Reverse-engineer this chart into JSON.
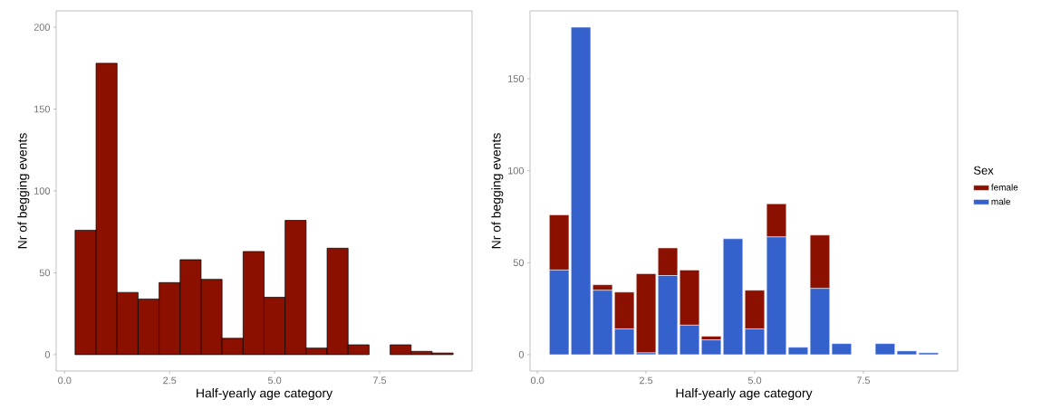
{
  "chart_data": [
    {
      "type": "histogram",
      "xlabel": "Half-yearly age category",
      "ylabel": "Nr of begging events",
      "bins": [
        0.25,
        0.75,
        1.25,
        1.75,
        2.25,
        2.75,
        3.25,
        3.75,
        4.25,
        4.75,
        5.25,
        5.75,
        6.25,
        6.75,
        7.25,
        7.75,
        8.25,
        8.75,
        9.25
      ],
      "values": [
        76,
        178,
        38,
        34,
        44,
        58,
        46,
        10,
        63,
        35,
        82,
        4,
        65,
        6,
        0,
        6,
        2,
        1
      ],
      "color": "#8b1000",
      "xlim": [
        -0.2,
        9.7
      ],
      "ylim": [
        -10,
        210
      ],
      "xticks": [
        {
          "value": 0,
          "label": "0.0"
        },
        {
          "value": 2.5,
          "label": "2.5"
        },
        {
          "value": 5,
          "label": "5.0"
        },
        {
          "value": 7.5,
          "label": "7.5"
        }
      ],
      "yticks": [
        0,
        50,
        100,
        150,
        200
      ]
    },
    {
      "type": "bar",
      "stacked": true,
      "xlabel": "Half-yearly age category",
      "ylabel": "Nr of begging events",
      "legend_title": "Sex",
      "legend": "right",
      "x": [
        0.5,
        1,
        1.5,
        2,
        2.5,
        3,
        3.5,
        4,
        4.5,
        5,
        5.5,
        6,
        6.5,
        7,
        8,
        8.5,
        9
      ],
      "series": [
        {
          "name": "male",
          "color": "#3461cc",
          "values": [
            46,
            178,
            35,
            14,
            1,
            43,
            16,
            8,
            63,
            14,
            64,
            4,
            36,
            6,
            6,
            2,
            1
          ]
        },
        {
          "name": "female",
          "color": "#8b1000",
          "values": [
            30,
            0,
            3,
            20,
            43,
            15,
            30,
            2,
            0,
            21,
            18,
            0,
            29,
            0,
            0,
            0,
            0
          ]
        }
      ],
      "xlim": [
        -0.17,
        9.67
      ],
      "ylim": [
        -8.9,
        186.9
      ],
      "xticks": [
        {
          "value": 0,
          "label": "0.0"
        },
        {
          "value": 2.5,
          "label": "2.5"
        },
        {
          "value": 5,
          "label": "5.0"
        },
        {
          "value": 7.5,
          "label": "7.5"
        }
      ],
      "yticks": [
        0,
        50,
        100,
        150
      ]
    }
  ]
}
